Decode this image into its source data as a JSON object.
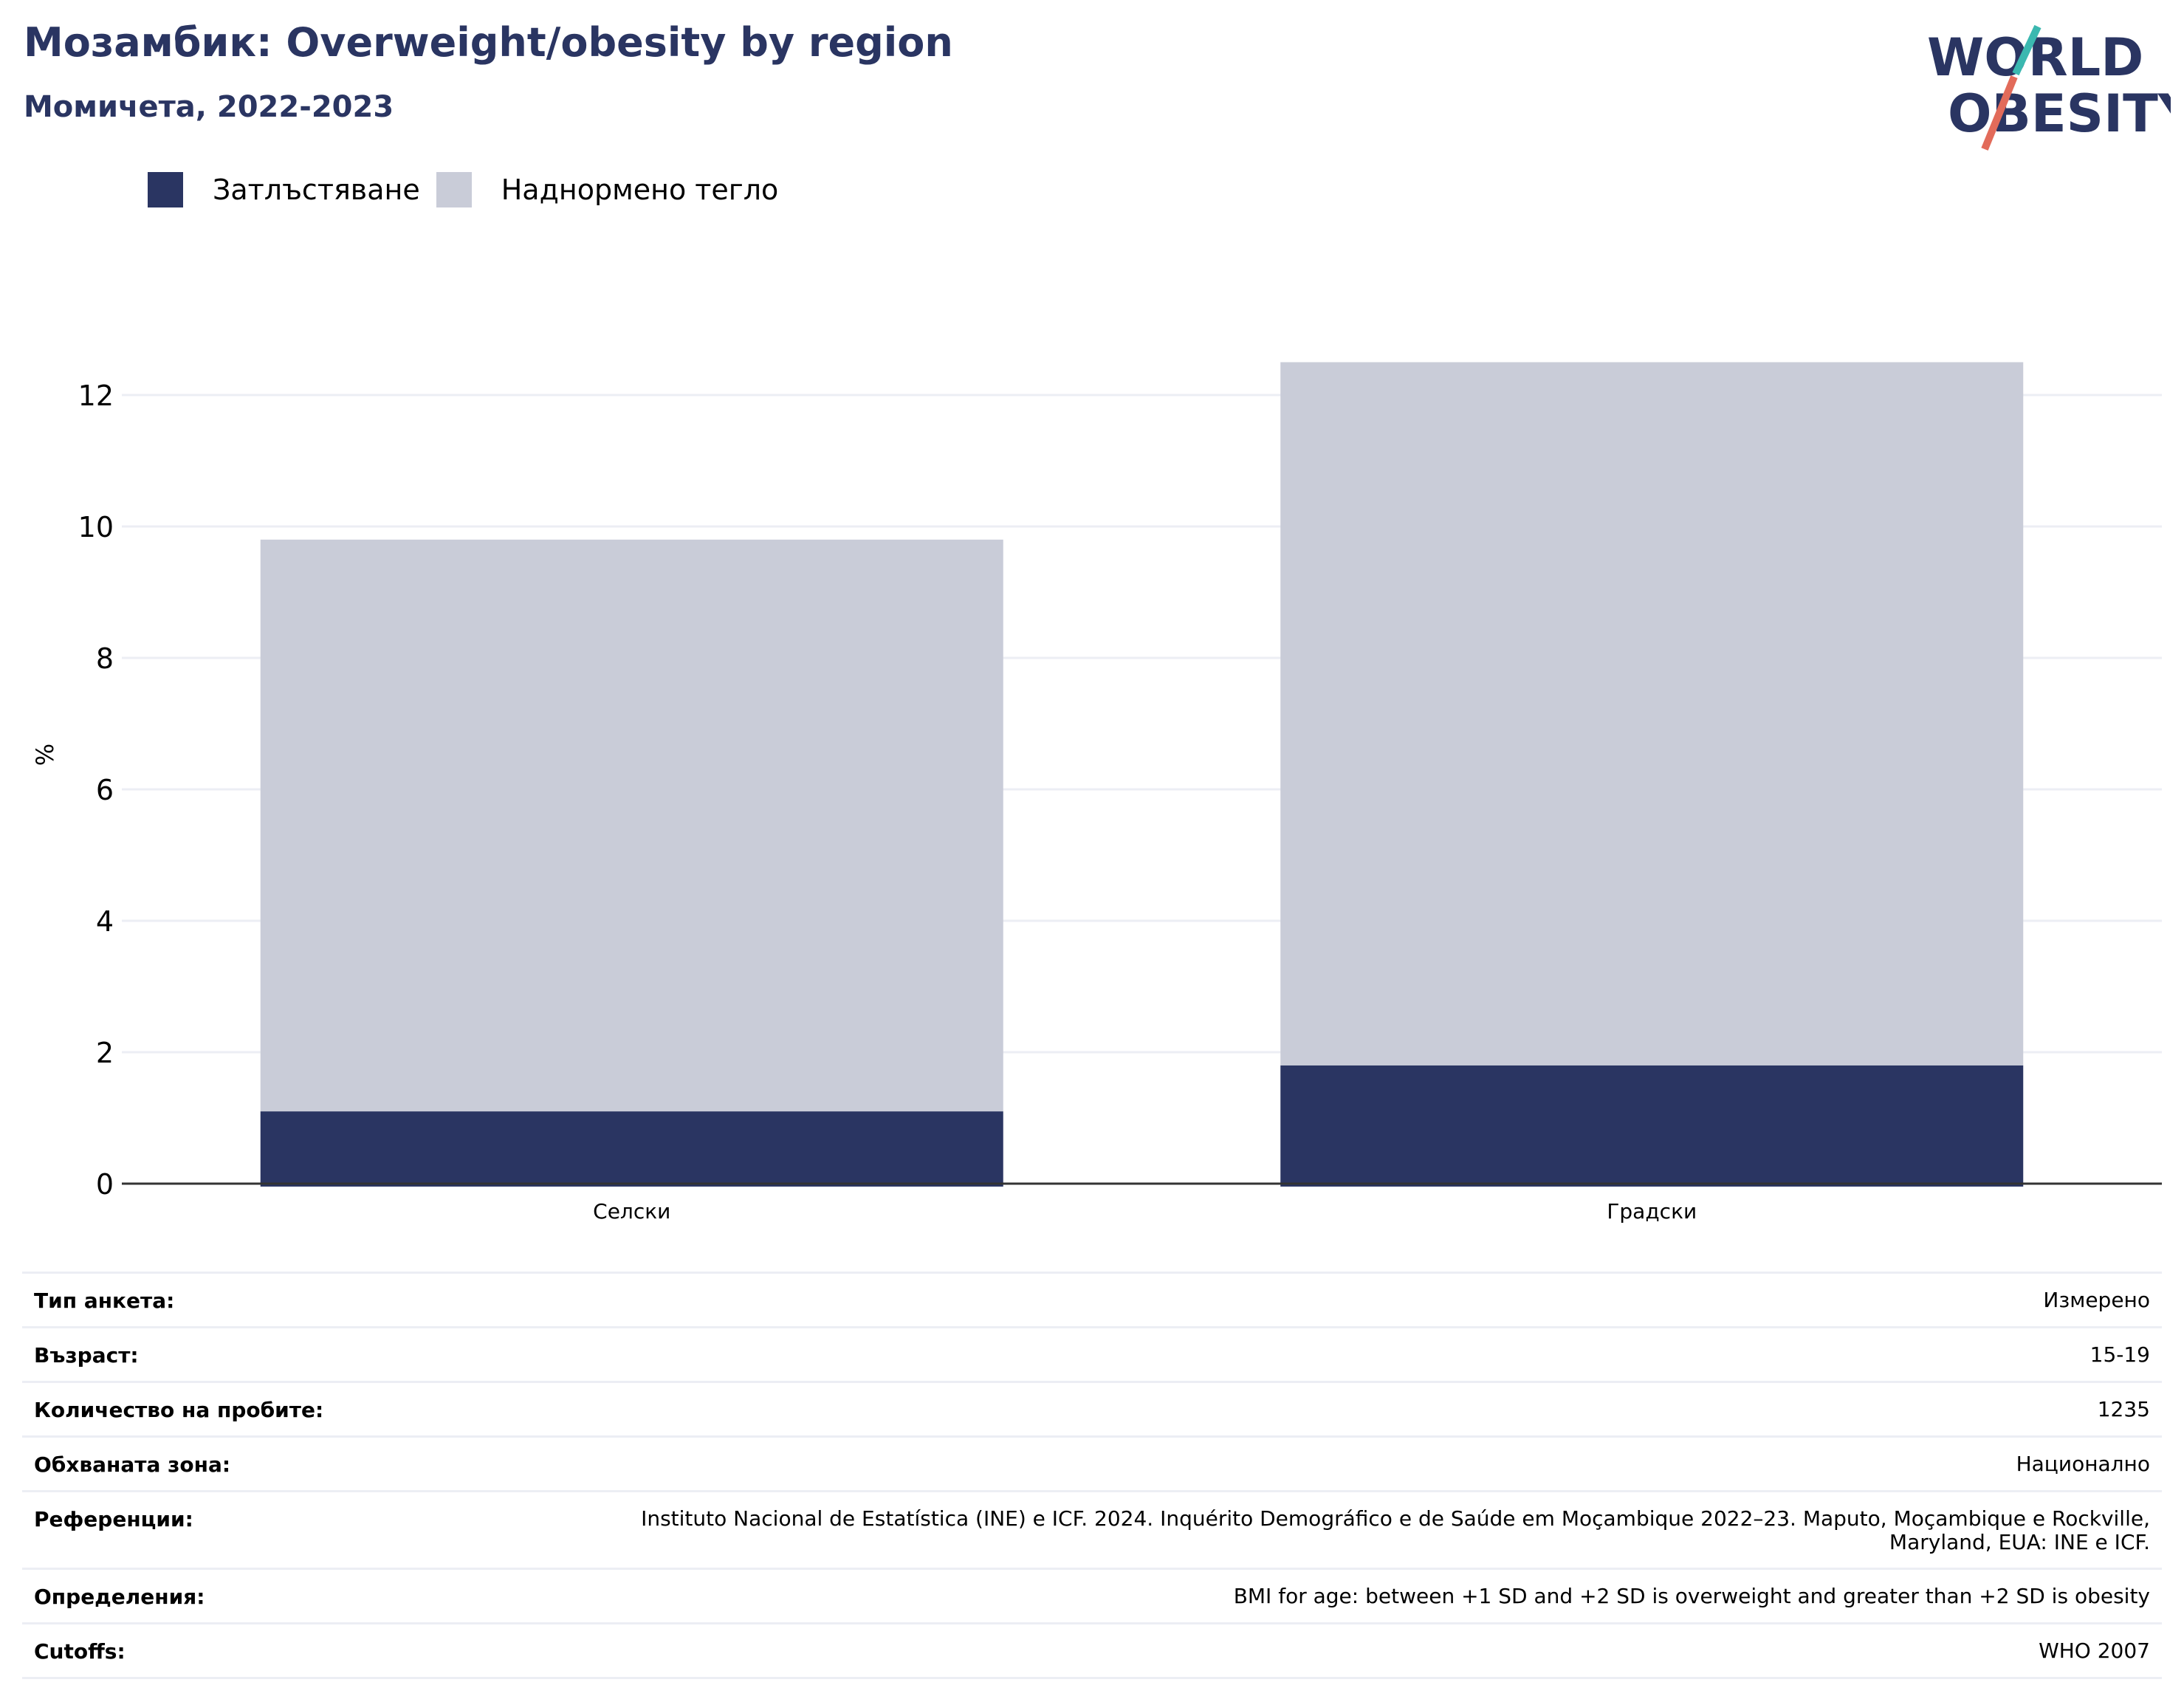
{
  "header": {
    "title": "Мозамбик: Overweight/obesity by region",
    "subtitle": "Момичета, 2022-2023"
  },
  "logo": {
    "line1": "WORLD",
    "line2": "OBESITY",
    "icon": "world-obesity-logo"
  },
  "colors": {
    "obesity": "#2a3562",
    "overweight": "#c9ccd8",
    "grid": "#eceef4",
    "title": "#2a3562"
  },
  "legend": [
    {
      "label": "Затлъстяване",
      "color": "#2a3562"
    },
    {
      "label": "Наднормено тегло",
      "color": "#c9ccd8"
    }
  ],
  "chart_data": {
    "type": "bar",
    "stacked": true,
    "categories": [
      "Селски",
      "Градски"
    ],
    "series": [
      {
        "name": "Затлъстяване",
        "values": [
          1.1,
          1.8
        ]
      },
      {
        "name": "Наднормено тегло",
        "values": [
          8.7,
          10.7
        ]
      }
    ],
    "ylabel": "%",
    "ylim": [
      0,
      13
    ],
    "yticks": [
      0,
      2,
      4,
      6,
      8,
      10,
      12
    ],
    "grid": true,
    "legend_position": "top-left"
  },
  "info": [
    {
      "key": "Тип анкета:",
      "value": "Измерено"
    },
    {
      "key": "Възраст:",
      "value": "15-19"
    },
    {
      "key": "Количество на пробите:",
      "value": "1235"
    },
    {
      "key": "Обхваната зона:",
      "value": "Национално"
    },
    {
      "key": "Референции:",
      "value": "Instituto Nacional de Estatística (INE) e ICF. 2024. Inquérito Demográfico e de Saúde em Moçambique 2022–23. Maputo, Moçambique e Rockville, Maryland, EUA: INE e ICF."
    },
    {
      "key": "Определения:",
      "value": "BMI for age: between +1 SD and +2 SD is overweight and greater than +2 SD is obesity"
    },
    {
      "key": "Cutoffs:",
      "value": "WHO 2007"
    }
  ]
}
